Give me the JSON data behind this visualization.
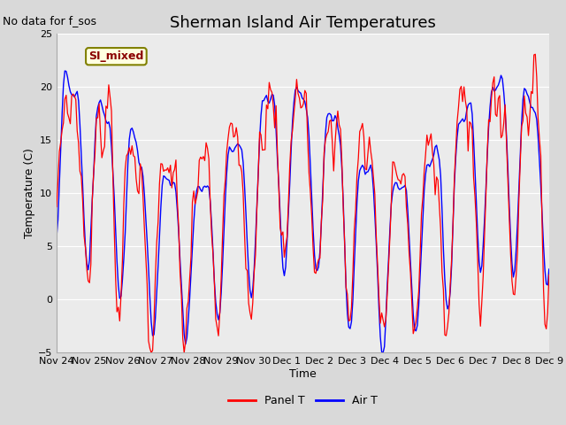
{
  "title": "Sherman Island Air Temperatures",
  "xlabel": "Time",
  "ylabel": "Temperature (C)",
  "ylim": [
    -5,
    25
  ],
  "yticks": [
    -5,
    0,
    5,
    10,
    15,
    20,
    25
  ],
  "x_tick_labels": [
    "Nov 24",
    "Nov 25",
    "Nov 26",
    "Nov 27",
    "Nov 28",
    "Nov 29",
    "Nov 30",
    "Dec 1",
    "Dec 2",
    "Dec 3",
    "Dec 4",
    "Dec 5",
    "Dec 6",
    "Dec 7",
    "Dec 8",
    "Dec 9"
  ],
  "panel_T_color": "red",
  "air_T_color": "blue",
  "fig_facecolor": "#d9d9d9",
  "plot_facecolor": "#ebebeb",
  "legend_label_panel": "Panel T",
  "legend_label_air": "Air T",
  "text_no_data": "No data for f_sos",
  "annotation_label": "SI_mixed",
  "title_fontsize": 13,
  "axis_label_fontsize": 9,
  "tick_fontsize": 8,
  "annotation_fontsize": 9,
  "nodata_fontsize": 9
}
